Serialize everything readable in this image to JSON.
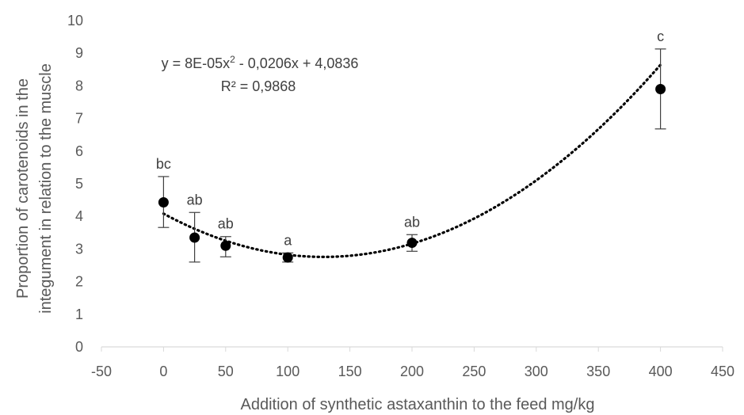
{
  "chart_data": {
    "type": "scatter",
    "title": "",
    "xlabel": "Addition of synthetic astaxanthin to the feed mg/kg",
    "ylabel_lines": [
      "Proportion of carotenoids in the",
      "integument in relation to the muscle"
    ],
    "xlim": [
      -50,
      450
    ],
    "ylim": [
      0,
      10
    ],
    "x_ticks": [
      -50,
      0,
      50,
      100,
      150,
      200,
      250,
      300,
      350,
      400,
      450
    ],
    "y_ticks": [
      0,
      1,
      2,
      3,
      4,
      5,
      6,
      7,
      8,
      9,
      10
    ],
    "grid": false,
    "points": [
      {
        "x": 0,
        "y": 4.43,
        "err_low": 3.66,
        "err_high": 5.22,
        "label": "bc"
      },
      {
        "x": 25,
        "y": 3.35,
        "err_low": 2.6,
        "err_high": 4.12,
        "label": "ab"
      },
      {
        "x": 50,
        "y": 3.1,
        "err_low": 2.76,
        "err_high": 3.38,
        "label": "ab"
      },
      {
        "x": 100,
        "y": 2.74,
        "err_low": 2.6,
        "err_high": 2.88,
        "label": "a"
      },
      {
        "x": 200,
        "y": 3.19,
        "err_low": 2.93,
        "err_high": 3.44,
        "label": "ab"
      },
      {
        "x": 400,
        "y": 7.9,
        "err_low": 6.68,
        "err_high": 9.13,
        "label": "c"
      }
    ],
    "trendline": {
      "type": "polynomial",
      "coefficients": [
        8e-05,
        -0.0206,
        4.0836
      ],
      "x_range": [
        0,
        400
      ],
      "style": "dotted",
      "equation_text": "y = 8E-05x",
      "equation_sup": "2",
      "equation_rest": " - 0,0206x + 4,0836",
      "r2_text": "R² = 0,9868"
    },
    "colors": {
      "marker": "#000000",
      "trendline": "#000000",
      "errorbar": "#404040",
      "axis": "#d9d9d9"
    }
  }
}
